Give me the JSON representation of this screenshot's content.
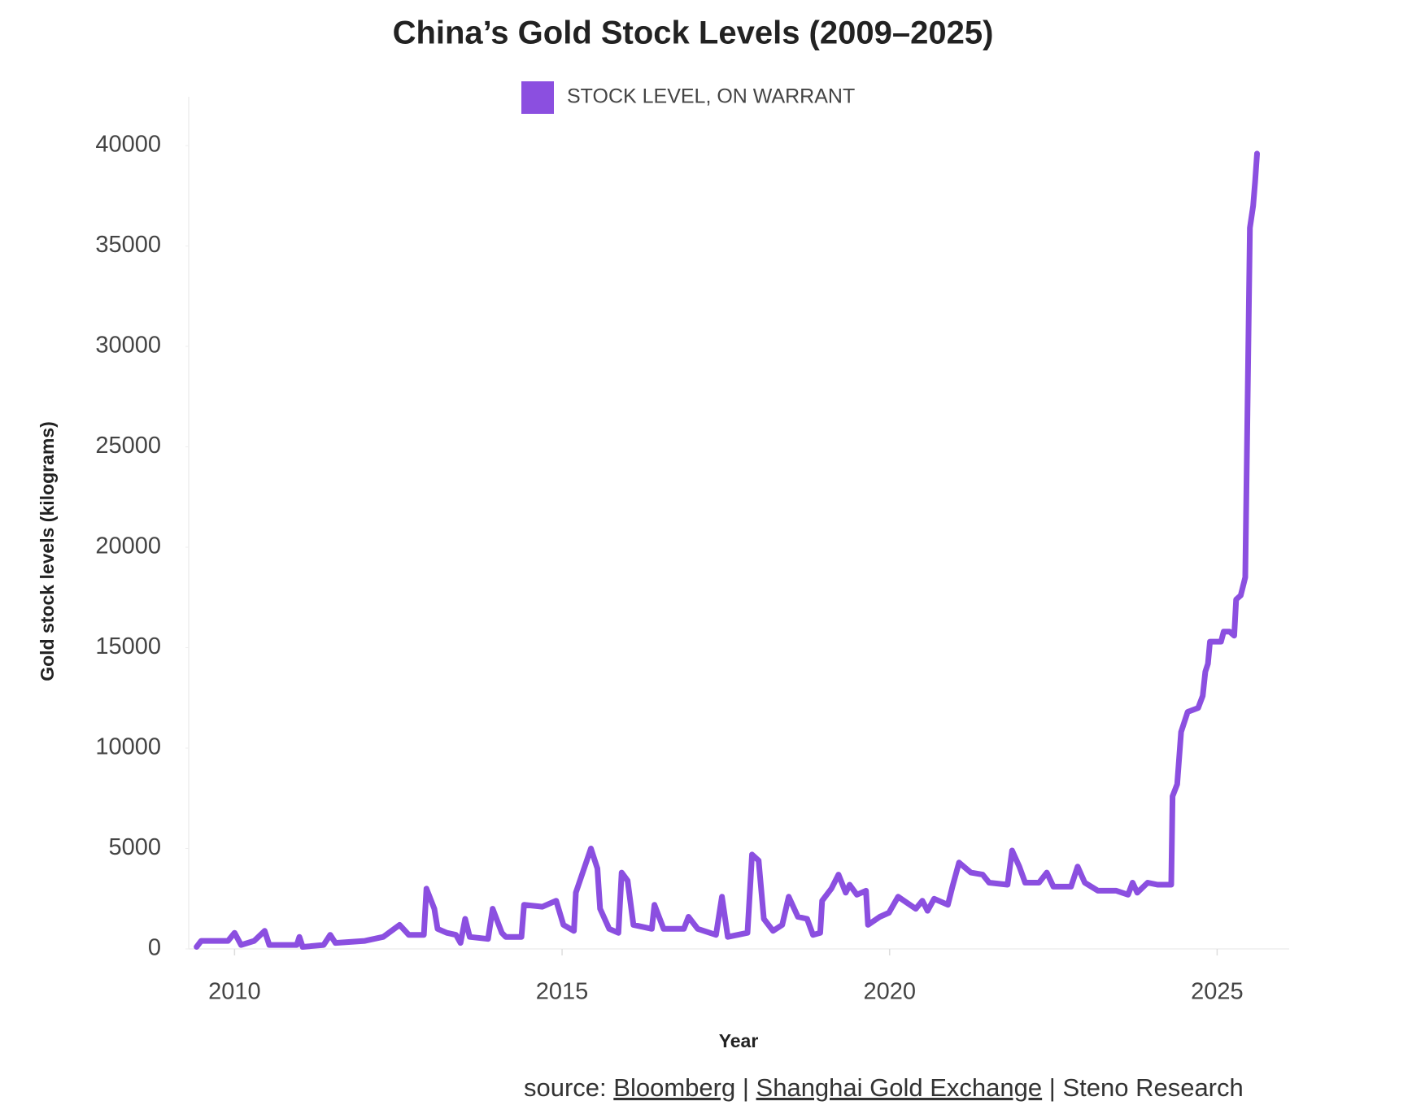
{
  "chart_data": {
    "type": "line",
    "title": "China’s Gold Stock Levels (2009–2025)",
    "xlabel": "Year",
    "ylabel": "Gold stock levels (kilograms)",
    "source": [
      "source:",
      "Bloomberg",
      "|",
      "Shanghai Gold Exchange",
      "|",
      "Steno Research"
    ],
    "legend": "top",
    "grid": false,
    "xlim": [
      2009.3,
      2026.1
    ],
    "xticks": [
      2010,
      2015,
      2020,
      2025
    ],
    "ylim": [
      0,
      40000
    ],
    "yticks": [
      0,
      5000,
      10000,
      15000,
      20000,
      25000,
      30000,
      35000,
      40000
    ],
    "x": [
      2009.42,
      2009.49,
      2009.9,
      2010.0,
      2010.1,
      2010.3,
      2010.46,
      2010.53,
      2010.95,
      2010.99,
      2011.04,
      2011.36,
      2011.46,
      2011.54,
      2011.99,
      2012.27,
      2012.52,
      2012.66,
      2012.89,
      2012.93,
      2013.05,
      2013.1,
      2013.24,
      2013.38,
      2013.45,
      2013.52,
      2013.59,
      2013.87,
      2013.94,
      2014.08,
      2014.14,
      2014.38,
      2014.42,
      2014.7,
      2014.91,
      2015.02,
      2015.18,
      2015.21,
      2015.44,
      2015.54,
      2015.58,
      2015.72,
      2015.86,
      2015.91,
      2016.0,
      2016.09,
      2016.37,
      2016.41,
      2016.55,
      2016.86,
      2016.93,
      2017.07,
      2017.35,
      2017.44,
      2017.53,
      2017.83,
      2017.9,
      2018.0,
      2018.08,
      2018.22,
      2018.36,
      2018.46,
      2018.6,
      2018.74,
      2018.83,
      2018.94,
      2018.97,
      2019.11,
      2019.22,
      2019.33,
      2019.39,
      2019.5,
      2019.64,
      2019.67,
      2019.85,
      2019.99,
      2020.13,
      2020.4,
      2020.5,
      2020.58,
      2020.68,
      2020.89,
      2020.96,
      2021.06,
      2021.24,
      2021.42,
      2021.52,
      2021.8,
      2021.87,
      2021.98,
      2022.07,
      2022.28,
      2022.4,
      2022.5,
      2022.77,
      2022.87,
      2022.98,
      2023.18,
      2023.46,
      2023.64,
      2023.71,
      2023.78,
      2023.94,
      2024.09,
      2024.3,
      2024.32,
      2024.39,
      2024.45,
      2024.55,
      2024.71,
      2024.78,
      2024.82,
      2024.86,
      2024.89,
      2025.06,
      2025.1,
      2025.19,
      2025.26,
      2025.29,
      2025.36,
      2025.43,
      2025.5,
      2025.55,
      2025.58,
      2025.61
    ],
    "series": [
      {
        "name": "STOCK LEVEL, ON WARRANT",
        "color": "#8b4fe0",
        "values": [
          100,
          400,
          400,
          800,
          200,
          400,
          900,
          200,
          200,
          600,
          100,
          200,
          700,
          300,
          400,
          600,
          1200,
          700,
          700,
          3000,
          2000,
          1000,
          800,
          700,
          300,
          1500,
          600,
          500,
          2000,
          800,
          600,
          600,
          2200,
          2100,
          2400,
          1200,
          900,
          2800,
          5000,
          4000,
          2000,
          1000,
          800,
          3800,
          3400,
          1200,
          1000,
          2200,
          1000,
          1000,
          1600,
          1000,
          700,
          2600,
          600,
          800,
          4700,
          4400,
          1500,
          900,
          1200,
          2600,
          1600,
          1500,
          700,
          800,
          2400,
          3000,
          3700,
          2800,
          3200,
          2700,
          2900,
          1200,
          1600,
          1800,
          2600,
          2000,
          2400,
          1900,
          2500,
          2200,
          3100,
          4300,
          3800,
          3700,
          3300,
          3200,
          4900,
          4100,
          3300,
          3300,
          3800,
          3100,
          3100,
          4100,
          3300,
          2900,
          2900,
          2700,
          3300,
          2800,
          3300,
          3200,
          3200,
          7600,
          8200,
          10800,
          11800,
          12000,
          12600,
          13800,
          14200,
          15300,
          15300,
          15800,
          15800,
          15600,
          17400,
          17600,
          18500,
          35900,
          37000,
          38200,
          39600
        ]
      }
    ]
  }
}
